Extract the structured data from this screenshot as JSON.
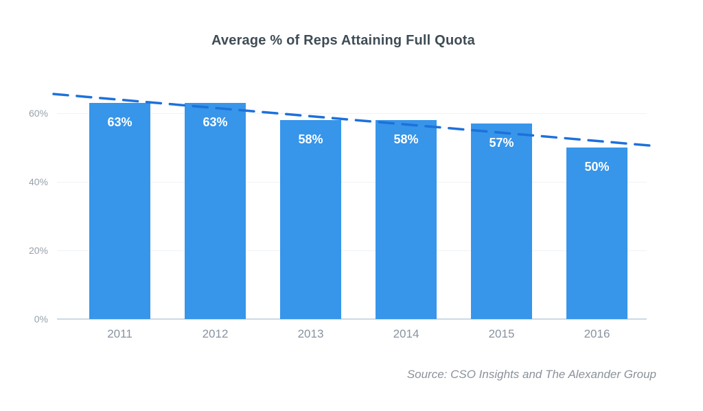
{
  "title": "Average % of Reps Attaining Full Quota",
  "source_note": "Source: CSO Insights and The Alexander Group",
  "colors": {
    "bar": "#3795ea",
    "trendline": "#1d71db",
    "title_text": "#3e4c55",
    "axis_labels": "#8793a0",
    "gridline": "#eef2f6",
    "baseline": "#ccd9e3"
  },
  "chart_data": {
    "type": "bar",
    "title": "Average % of Reps Attaining Full Quota",
    "categories": [
      "2011",
      "2012",
      "2013",
      "2014",
      "2015",
      "2016"
    ],
    "values": [
      63,
      63,
      58,
      58,
      57,
      50
    ],
    "bar_labels": [
      "63%",
      "63%",
      "58%",
      "58%",
      "57%",
      "50%"
    ],
    "xlabel": "",
    "ylabel": "",
    "ylim": [
      0,
      70
    ],
    "yticks": [
      {
        "label": "0%",
        "value": 0
      },
      {
        "label": "20%",
        "value": 20
      },
      {
        "label": "40%",
        "value": 40
      },
      {
        "label": "60%",
        "value": 60
      }
    ],
    "grid": true,
    "legend": "none",
    "trendline": {
      "style": "dashed",
      "start_value_pct": 65.6,
      "end_value_pct": 50.4
    },
    "annotation": "Source: CSO Insights and The Alexander Group"
  }
}
